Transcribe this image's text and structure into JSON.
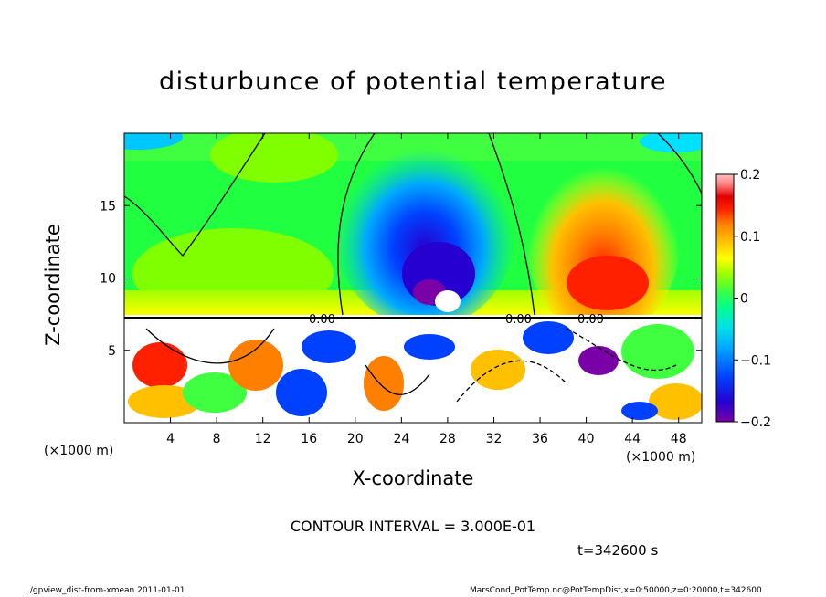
{
  "chart_data": {
    "type": "heatmap",
    "title": "disturbunce of potential temperature",
    "xlabel": "X-coordinate",
    "ylabel": "Z-coordinate",
    "x_unit_left": "(×1000 m)",
    "x_unit_right": "(×1000 m)",
    "x_ticks": [
      "4",
      "8",
      "12",
      "16",
      "20",
      "24",
      "28",
      "32",
      "36",
      "40",
      "44",
      "48"
    ],
    "y_ticks": [
      "5",
      "10",
      "15"
    ],
    "xlim": [
      0,
      50
    ],
    "ylim": [
      0,
      20
    ],
    "colorbar": {
      "ticks": [
        "0.2",
        "0.1",
        "0",
        "−0.1",
        "−0.2"
      ],
      "range": [
        -0.2,
        0.2
      ]
    },
    "contour_labels": [
      "0.00",
      "0.00",
      "0.00"
    ],
    "contour_interval": "CONTOUR INTERVAL = 3.000E-01",
    "time": "t=342600 s"
  },
  "footer": {
    "left": "./gpview_dist-from-xmean  2011-01-01",
    "right": "MarsCond_PotTemp.nc@PotTempDist,x=0:50000,z=0:20000,t=342600"
  },
  "colors": {
    "scale": [
      "#7a00a8",
      "#2600d0",
      "#0040ff",
      "#00a8ff",
      "#00e0e8",
      "#00ff90",
      "#40ff40",
      "#a0ff00",
      "#ffff00",
      "#ffc000",
      "#ff8000",
      "#ff2000",
      "#e00000",
      "#ff8080",
      "#ffc0c0"
    ]
  }
}
